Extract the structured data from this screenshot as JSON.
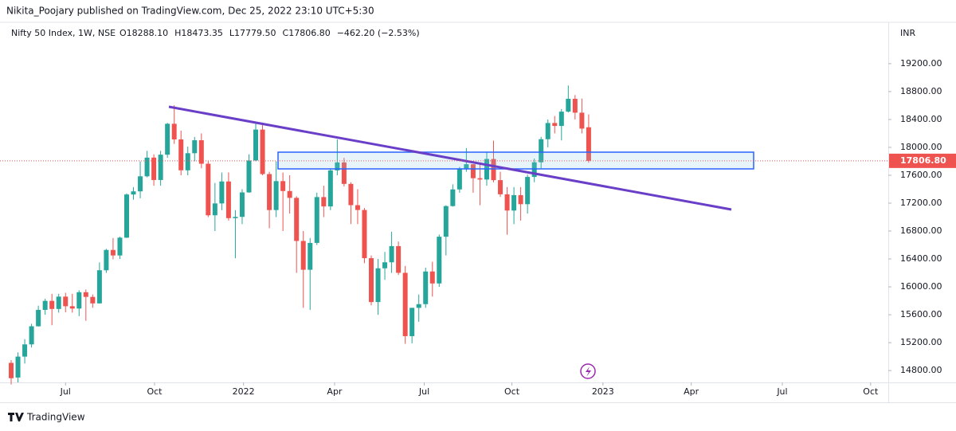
{
  "header": {
    "publisher": "Nikita_Poojary published on TradingView.com, Dec 25, 2022 23:10 UTC+5:30"
  },
  "footer": {
    "brand": "TradingView"
  },
  "chart_data": {
    "type": "candlestick",
    "title": "Nifty 50 Index, 1W, NSE",
    "legend_values": [
      "O18288.10",
      "H18473.35",
      "L17779.50",
      "C17806.80",
      "−462.20 (−2.53%)"
    ],
    "currency": "INR",
    "up_color": "#26a69a",
    "down_color": "#ef5350",
    "open": [
      14910,
      14700,
      15000,
      15175,
      15435,
      15670,
      15799,
      15683,
      15860,
      15722,
      15689,
      15923,
      15856,
      15763,
      16238,
      16529,
      16450,
      16705,
      17324,
      17369,
      17585,
      17853,
      17532,
      17895,
      18338,
      18114,
      17671,
      17916,
      18102,
      17765,
      17026,
      17196,
      17511,
      16985,
      17003,
      17354,
      17812,
      18255,
      17617,
      17101,
      17516,
      17374,
      17276,
      16658,
      16245,
      16630,
      17287,
      17153,
      17670,
      17784,
      17476,
      17171,
      17102,
      16411,
      15782,
      16266,
      16352,
      16584,
      16201,
      15293,
      15699,
      15752,
      16220,
      16049,
      16719,
      17158,
      17397,
      17698,
      17758,
      17558,
      17539,
      17833,
      17530,
      17327,
      17094,
      17315,
      17185,
      17576,
      17786,
      18117,
      18349,
      18307,
      18512,
      18696,
      18497,
      18288.1
    ],
    "high": [
      14950,
      15060,
      15250,
      15470,
      15730,
      15830,
      15900,
      15900,
      15915,
      15900,
      15950,
      15962,
      15890,
      16350,
      16545,
      16700,
      16720,
      17340,
      17430,
      17800,
      17950,
      17900,
      17950,
      18350,
      18604,
      18240,
      18010,
      18150,
      18200,
      17800,
      17490,
      17640,
      17640,
      17100,
      17400,
      17900,
      18350,
      18350,
      17650,
      17800,
      17640,
      17600,
      17300,
      16800,
      16700,
      17350,
      17450,
      17700,
      18114,
      17850,
      17500,
      17400,
      17130,
      16450,
      16400,
      16500,
      16790,
      16650,
      16300,
      15700,
      15890,
      16275,
      16360,
      16750,
      17170,
      17470,
      17720,
      17990,
      17760,
      17780,
      17930,
      18096,
      17650,
      17430,
      17430,
      17430,
      17610,
      17840,
      18150,
      18400,
      18450,
      18550,
      18887,
      18750,
      18700,
      18473.35
    ],
    "low": [
      14600,
      14630,
      14900,
      15130,
      15430,
      15600,
      15450,
      15630,
      15635,
      15630,
      15580,
      15513,
      15700,
      15760,
      16200,
      16395,
      16400,
      16700,
      17250,
      17270,
      17570,
      17450,
      17450,
      17850,
      18050,
      17600,
      17600,
      17800,
      17700,
      17000,
      16800,
      17100,
      16950,
      16410,
      16900,
      17350,
      17800,
      17600,
      16840,
      17000,
      16800,
      17050,
      16200,
      15700,
      15670,
      16600,
      17000,
      17100,
      17600,
      17440,
      16900,
      16900,
      16340,
      15735,
      15600,
      16100,
      16200,
      16170,
      15183,
      15190,
      15500,
      15700,
      15860,
      16000,
      16450,
      17150,
      17350,
      17650,
      17350,
      17170,
      17450,
      17500,
      17290,
      16748,
      16900,
      16950,
      17050,
      17500,
      17700,
      18000,
      18200,
      18100,
      18500,
      18400,
      18200,
      17779.5
    ],
    "close": [
      14690,
      15000,
      15175,
      15435,
      15670,
      15799,
      15683,
      15860,
      15722,
      15689,
      15923,
      15856,
      15763,
      16238,
      16529,
      16450,
      16705,
      17324,
      17369,
      17585,
      17853,
      17532,
      17895,
      18338,
      18114,
      17671,
      17916,
      18102,
      17765,
      17026,
      17196,
      17511,
      16985,
      17003,
      17354,
      17812,
      18255,
      17617,
      17101,
      17516,
      17374,
      17276,
      16658,
      16245,
      16630,
      17287,
      17153,
      17670,
      17784,
      17476,
      17171,
      17102,
      16411,
      15782,
      16266,
      16352,
      16584,
      16201,
      15293,
      15699,
      15752,
      16220,
      16049,
      16719,
      17158,
      17397,
      17698,
      17758,
      17558,
      17539,
      17833,
      17530,
      17327,
      17094,
      17315,
      17185,
      17576,
      17786,
      18117,
      18349,
      18307,
      18512,
      18696,
      18497,
      18269,
      17806.8
    ],
    "xlim": [
      -0.47,
      129.1
    ],
    "xticks": [
      {
        "value": 8.0,
        "label": "Jul"
      },
      {
        "value": 21.1,
        "label": "Oct"
      },
      {
        "value": 34.2,
        "label": "2022"
      },
      {
        "value": 47.6,
        "label": "Apr"
      },
      {
        "value": 60.8,
        "label": "Jul"
      },
      {
        "value": 73.7,
        "label": "Oct"
      },
      {
        "value": 87.1,
        "label": "2023"
      },
      {
        "value": 100.1,
        "label": "Apr"
      },
      {
        "value": 113.5,
        "label": "Jul"
      },
      {
        "value": 126.5,
        "label": "Oct"
      }
    ],
    "ylim": [
      14630,
      19770
    ],
    "yticks": [
      {
        "value": 14800,
        "label": "14800.00"
      },
      {
        "value": 15200,
        "label": "15200.00"
      },
      {
        "value": 15600,
        "label": "15600.00"
      },
      {
        "value": 16000,
        "label": "16000.00"
      },
      {
        "value": 16400,
        "label": "16400.00"
      },
      {
        "value": 16800,
        "label": "16800.00"
      },
      {
        "value": 17200,
        "label": "17200.00"
      },
      {
        "value": 17600,
        "label": "17600.00"
      },
      {
        "value": 18000,
        "label": "18000.00"
      },
      {
        "value": 18400,
        "label": "18400.00"
      },
      {
        "value": 18800,
        "label": "18800.00"
      },
      {
        "value": 19200,
        "label": "19200.00"
      }
    ],
    "last_price": {
      "value": 17806.8,
      "label": "17806.80",
      "color": "#ef5350"
    }
  }
}
